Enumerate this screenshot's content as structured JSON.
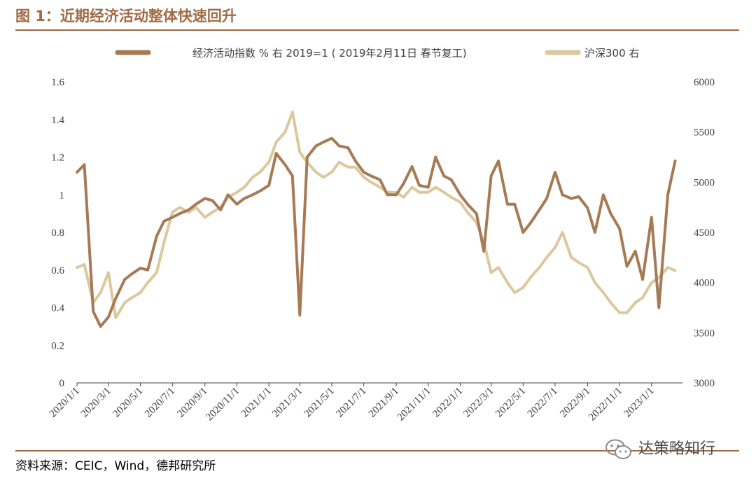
{
  "header": {
    "title": "图 1：近期经济活动整体快速回升"
  },
  "footer": {
    "source": "资料来源：CEIC，Wind，德邦研究所",
    "watermark": "达策略知行"
  },
  "colors": {
    "activity": "#a67a54",
    "csi300": "#dcc89e",
    "accent": "#a06b43",
    "axis": "#404040"
  },
  "chart_data": {
    "type": "line",
    "title": "",
    "legend_position": "top",
    "grid": false,
    "x_dates": [
      "2020/1/1",
      "2020/1/15",
      "2020/2/1",
      "2020/2/15",
      "2020/3/1",
      "2020/3/15",
      "2020/4/1",
      "2020/4/15",
      "2020/5/1",
      "2020/5/15",
      "2020/6/1",
      "2020/6/15",
      "2020/7/1",
      "2020/7/15",
      "2020/8/1",
      "2020/8/15",
      "2020/9/1",
      "2020/9/15",
      "2020/10/1",
      "2020/10/15",
      "2020/11/1",
      "2020/11/15",
      "2020/12/1",
      "2020/12/15",
      "2021/1/1",
      "2021/1/15",
      "2021/2/1",
      "2021/2/15",
      "2021/3/1",
      "2021/3/15",
      "2021/4/1",
      "2021/4/15",
      "2021/5/1",
      "2021/5/15",
      "2021/6/1",
      "2021/6/15",
      "2021/7/1",
      "2021/7/15",
      "2021/8/1",
      "2021/8/15",
      "2021/9/1",
      "2021/9/15",
      "2021/10/1",
      "2021/10/15",
      "2021/11/1",
      "2021/11/15",
      "2021/12/1",
      "2021/12/15",
      "2022/1/1",
      "2022/1/15",
      "2022/2/1",
      "2022/2/15",
      "2022/3/1",
      "2022/3/15",
      "2022/4/1",
      "2022/4/15",
      "2022/5/1",
      "2022/5/15",
      "2022/6/1",
      "2022/6/15",
      "2022/7/1",
      "2022/7/15",
      "2022/8/1",
      "2022/8/15",
      "2022/9/1",
      "2022/9/15",
      "2022/10/1",
      "2022/10/15",
      "2022/11/1",
      "2022/11/15",
      "2022/12/1",
      "2022/12/15",
      "2023/1/1",
      "2023/1/15",
      "2023/2/1",
      "2023/2/15"
    ],
    "x_tick_labels": [
      "2020/1/1",
      "2020/3/1",
      "2020/5/1",
      "2020/7/1",
      "2020/9/1",
      "2020/11/1",
      "2021/1/1",
      "2021/3/1",
      "2021/5/1",
      "2021/7/1",
      "2021/9/1",
      "2021/11/1",
      "2022/1/1",
      "2022/3/1",
      "2022/5/1",
      "2022/7/1",
      "2022/9/1",
      "2022/11/1",
      "2023/1/1"
    ],
    "y_left": {
      "min": 0,
      "max": 1.6,
      "ticks": [
        "0",
        "0.2",
        "0.4",
        "0.6",
        "0.8",
        "1",
        "1.2",
        "1.4",
        "1.6"
      ]
    },
    "y_right": {
      "min": 3000,
      "max": 6000,
      "ticks": [
        "3000",
        "3500",
        "4000",
        "4500",
        "5000",
        "5500",
        "6000"
      ]
    },
    "series": [
      {
        "name": "经济活动指数 % 右 2019=1 ( 2019年2月11日 春节复工)",
        "axis": "left",
        "values": [
          1.12,
          1.16,
          0.38,
          0.3,
          0.35,
          0.45,
          0.55,
          0.58,
          0.61,
          0.6,
          0.78,
          0.86,
          0.88,
          0.9,
          0.92,
          0.95,
          0.98,
          0.97,
          0.92,
          1.0,
          0.95,
          0.98,
          1.0,
          1.02,
          1.05,
          1.22,
          1.16,
          1.1,
          0.36,
          1.2,
          1.26,
          1.28,
          1.3,
          1.26,
          1.25,
          1.18,
          1.12,
          1.1,
          1.08,
          1.0,
          1.0,
          1.06,
          1.15,
          1.05,
          1.04,
          1.2,
          1.1,
          1.08,
          1.0,
          0.95,
          0.9,
          0.7,
          1.1,
          1.18,
          0.95,
          0.95,
          0.8,
          0.85,
          0.92,
          0.98,
          1.12,
          1.0,
          0.98,
          0.99,
          0.93,
          0.8,
          1.0,
          0.9,
          0.82,
          0.62,
          0.7,
          0.55,
          0.88,
          0.4,
          1.0,
          1.18
        ]
      },
      {
        "name": "沪深300 右",
        "axis": "right",
        "values": [
          4150,
          4180,
          3800,
          3900,
          4100,
          3650,
          3800,
          3850,
          3900,
          4000,
          4100,
          4400,
          4700,
          4750,
          4700,
          4750,
          4650,
          4700,
          4750,
          4850,
          4900,
          4950,
          5050,
          5100,
          5200,
          5400,
          5500,
          5700,
          5300,
          5200,
          5100,
          5050,
          5100,
          5200,
          5150,
          5150,
          5050,
          5000,
          4950,
          4900,
          4900,
          4850,
          4950,
          4900,
          4900,
          4950,
          4900,
          4850,
          4800,
          4700,
          4600,
          4400,
          4100,
          4150,
          4000,
          3900,
          3950,
          4050,
          4150,
          4250,
          4350,
          4500,
          4250,
          4200,
          4150,
          4000,
          3900,
          3800,
          3700,
          3700,
          3800,
          3850,
          4000,
          4050,
          4150,
          4120
        ]
      }
    ]
  }
}
